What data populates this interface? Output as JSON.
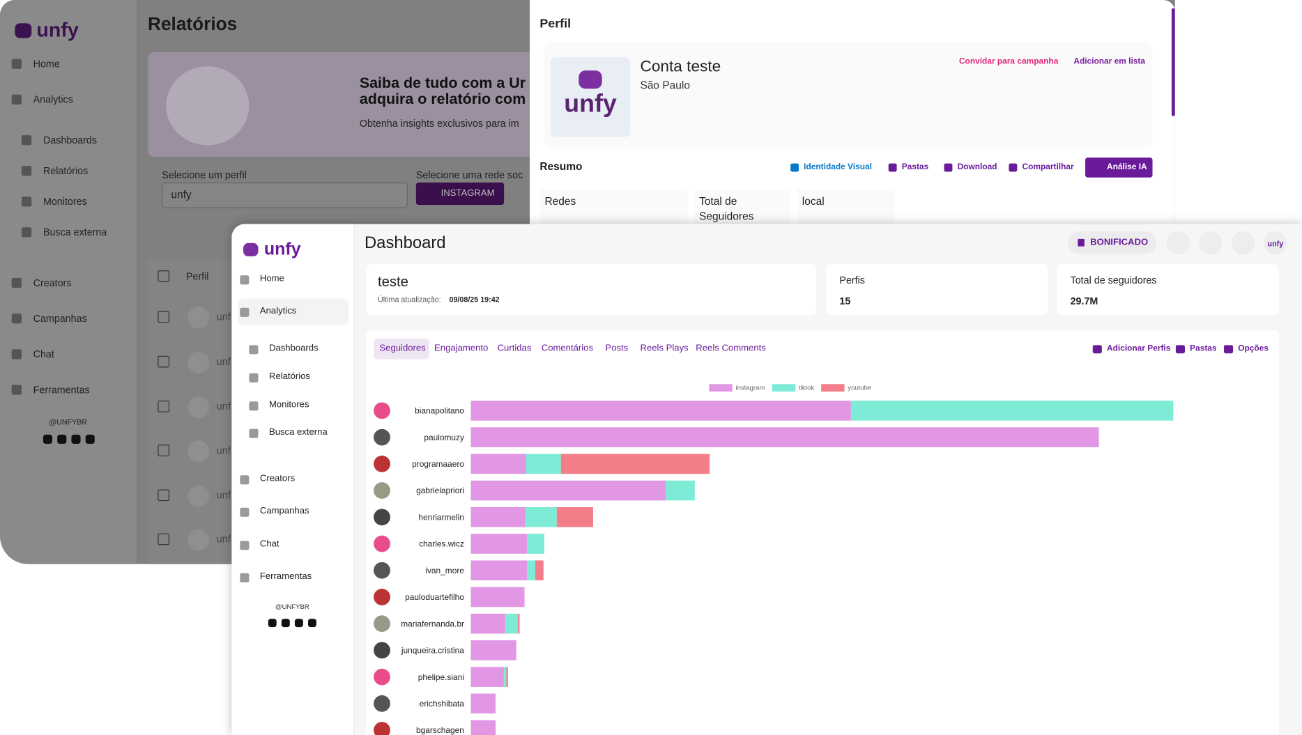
{
  "back": {
    "brand": "unfy",
    "sidebar": [
      "Home",
      "Analytics",
      "Dashboards",
      "Relatórios",
      "Monitores",
      "Busca externa",
      "Creators",
      "Campanhas",
      "Chat",
      "Ferramentas"
    ],
    "handle": "@UNFYBR",
    "title": "Relatórios",
    "banner": {
      "line1": "Saiba de tudo com a Ur",
      "line2": "adquira o relatório com",
      "text": "Obtenha insights exclusivos para im"
    },
    "profile_label": "Selecione um perfil",
    "profile_value": "unfy",
    "network_label": "Selecione uma rede soc",
    "network_button": "INSTAGRAM",
    "table": {
      "header": "Perfil",
      "rows": [
        "unf",
        "unf",
        "unf",
        "unf",
        "unf",
        "unf"
      ]
    }
  },
  "panel": {
    "title": "Perfil",
    "name": "Conta teste",
    "city": "São Paulo",
    "brand": "unfy",
    "invite": "Convidar para campanha",
    "add_list": "Adicionar em lista",
    "summary": "Resumo",
    "actions": [
      "Identidade Visual",
      "Pastas",
      "Download",
      "Compartilhar",
      "Análise IA"
    ],
    "cards": [
      "Redes",
      "Total de Seguidores",
      "local"
    ]
  },
  "front": {
    "brand": "unfy",
    "sidebar": [
      "Home",
      "Analytics",
      "Dashboards",
      "Relatórios",
      "Monitores",
      "Busca externa",
      "Creators",
      "Campanhas",
      "Chat",
      "Ferramentas"
    ],
    "handle": "@UNFYBR",
    "title": "Dashboard",
    "badge": "BONIFICADO",
    "avatar": "unfy",
    "card": {
      "name": "teste",
      "updated_label": "Última atualização:",
      "updated": "09/08/25 19:42"
    },
    "profiles": {
      "label": "Perfis",
      "value": "15"
    },
    "followers": {
      "label": "Total de seguidores",
      "value": "29.7M"
    },
    "tabs": [
      "Seguidores",
      "Engajamento",
      "Curtidas",
      "Comentários",
      "Posts",
      "Reels Plays",
      "Reels Comments"
    ],
    "actions": [
      "Adicionar Perfis",
      "Pastas",
      "Opções"
    ],
    "chart_data": {
      "type": "bar",
      "orientation": "horizontal",
      "stacked": true,
      "categories": [
        "bianapolitano",
        "paulomuzy",
        "programaaero",
        "gabrielapriori",
        "henriarmelin",
        "charles.wicz",
        "ivan_more",
        "pauloduartefilho",
        "mariafernanda.br",
        "junqueira.cristina",
        "phelipe.siani",
        "erichshibata",
        "bgarschagen"
      ],
      "series": [
        {
          "name": "instagram",
          "color": "#e197e3",
          "values": [
            4.6,
            7.6,
            0.67,
            2.36,
            0.66,
            0.68,
            0.68,
            0.65,
            0.42,
            0.55,
            0.4,
            0.3,
            0.3
          ]
        },
        {
          "name": "tiktok",
          "color": "#7debd6",
          "values": [
            3.9,
            0,
            0.42,
            0.35,
            0.38,
            0.21,
            0.1,
            0,
            0.15,
            0,
            0.03,
            0,
            0
          ]
        },
        {
          "name": "youtube",
          "color": "#f47d8a",
          "values": [
            0,
            0,
            1.8,
            0,
            0.44,
            0,
            0.1,
            0,
            0.02,
            0,
            0.02,
            0,
            0
          ]
        }
      ],
      "legend": "top"
    }
  }
}
